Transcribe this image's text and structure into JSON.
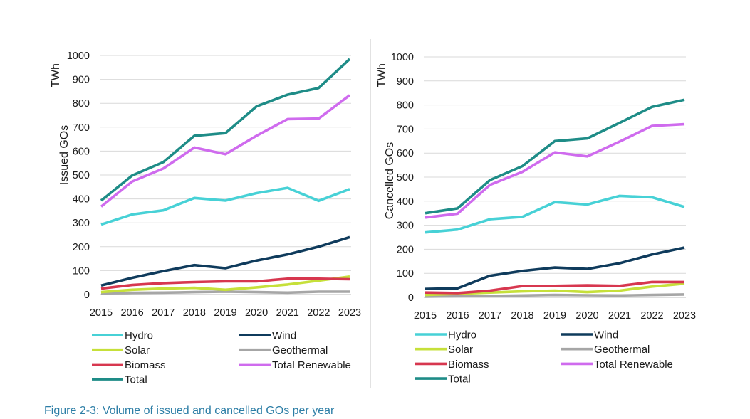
{
  "caption": "Figure 2-3: Volume of issued and cancelled GOs per year",
  "legend_entries": [
    {
      "name": "Hydro",
      "color": "#47d1d6"
    },
    {
      "name": "Wind",
      "color": "#0f3b5c"
    },
    {
      "name": "Solar",
      "color": "#c6e03a"
    },
    {
      "name": "Geothermal",
      "color": "#a6a6a6"
    },
    {
      "name": "Biomass",
      "color": "#d7374f"
    },
    {
      "name": "Total Renewable",
      "color": "#cf6bee"
    },
    {
      "name": "Total",
      "color": "#1e8c87"
    }
  ],
  "chart_data": [
    {
      "type": "line",
      "unit_label": "TWh",
      "ylabel": "Issued GOs",
      "ylim": [
        0,
        1000
      ],
      "yticks": [
        "0",
        "100",
        "200",
        "300",
        "400",
        "500",
        "600",
        "700",
        "800",
        "900",
        "1000"
      ],
      "x": [
        "2015",
        "2016",
        "2017",
        "2018",
        "2019",
        "2020",
        "2021",
        "2022",
        "2023"
      ],
      "series": [
        {
          "name": "Geothermal",
          "color": "#a6a6a6",
          "values": [
            5,
            7,
            8,
            10,
            12,
            10,
            8,
            12,
            12
          ]
        },
        {
          "name": "Solar",
          "color": "#c6e03a",
          "values": [
            10,
            20,
            25,
            28,
            20,
            30,
            42,
            58,
            75
          ]
        },
        {
          "name": "Biomass",
          "color": "#d7374f",
          "values": [
            25,
            40,
            48,
            52,
            55,
            55,
            66,
            66,
            64
          ]
        },
        {
          "name": "Wind",
          "color": "#0f3b5c",
          "values": [
            38,
            70,
            98,
            123,
            110,
            142,
            168,
            200,
            240
          ]
        },
        {
          "name": "Hydro",
          "color": "#47d1d6",
          "values": [
            293,
            335,
            352,
            404,
            393,
            424,
            446,
            392,
            441
          ]
        },
        {
          "name": "Total Renewable",
          "color": "#cf6bee",
          "values": [
            368,
            473,
            527,
            615,
            587,
            664,
            734,
            736,
            834
          ]
        },
        {
          "name": "Total",
          "color": "#1e8c87",
          "values": [
            393,
            498,
            554,
            664,
            675,
            787,
            836,
            864,
            985
          ]
        }
      ]
    },
    {
      "type": "line",
      "unit_label": "TWh",
      "ylabel": "Cancelled GOs",
      "ylim": [
        0,
        1000
      ],
      "yticks": [
        "0",
        "100",
        "200",
        "300",
        "400",
        "500",
        "600",
        "700",
        "800",
        "900",
        "1000"
      ],
      "x": [
        "2015",
        "2016",
        "2017",
        "2018",
        "2019",
        "2020",
        "2021",
        "2022",
        "2023"
      ],
      "series": [
        {
          "name": "Geothermal",
          "color": "#a6a6a6",
          "values": [
            3,
            5,
            6,
            8,
            10,
            9,
            8,
            10,
            12
          ]
        },
        {
          "name": "Solar",
          "color": "#c6e03a",
          "values": [
            10,
            15,
            20,
            25,
            28,
            22,
            28,
            45,
            57
          ]
        },
        {
          "name": "Biomass",
          "color": "#d7374f",
          "values": [
            20,
            18,
            28,
            47,
            48,
            50,
            48,
            64,
            64
          ]
        },
        {
          "name": "Wind",
          "color": "#0f3b5c",
          "values": [
            35,
            38,
            90,
            110,
            124,
            118,
            142,
            178,
            207
          ]
        },
        {
          "name": "Hydro",
          "color": "#47d1d6",
          "values": [
            270,
            282,
            325,
            335,
            396,
            386,
            422,
            416,
            376
          ]
        },
        {
          "name": "Total Renewable",
          "color": "#cf6bee",
          "values": [
            332,
            348,
            468,
            522,
            603,
            586,
            648,
            713,
            720
          ]
        },
        {
          "name": "Total",
          "color": "#1e8c87",
          "values": [
            350,
            370,
            488,
            546,
            650,
            661,
            726,
            792,
            822
          ]
        }
      ]
    }
  ]
}
